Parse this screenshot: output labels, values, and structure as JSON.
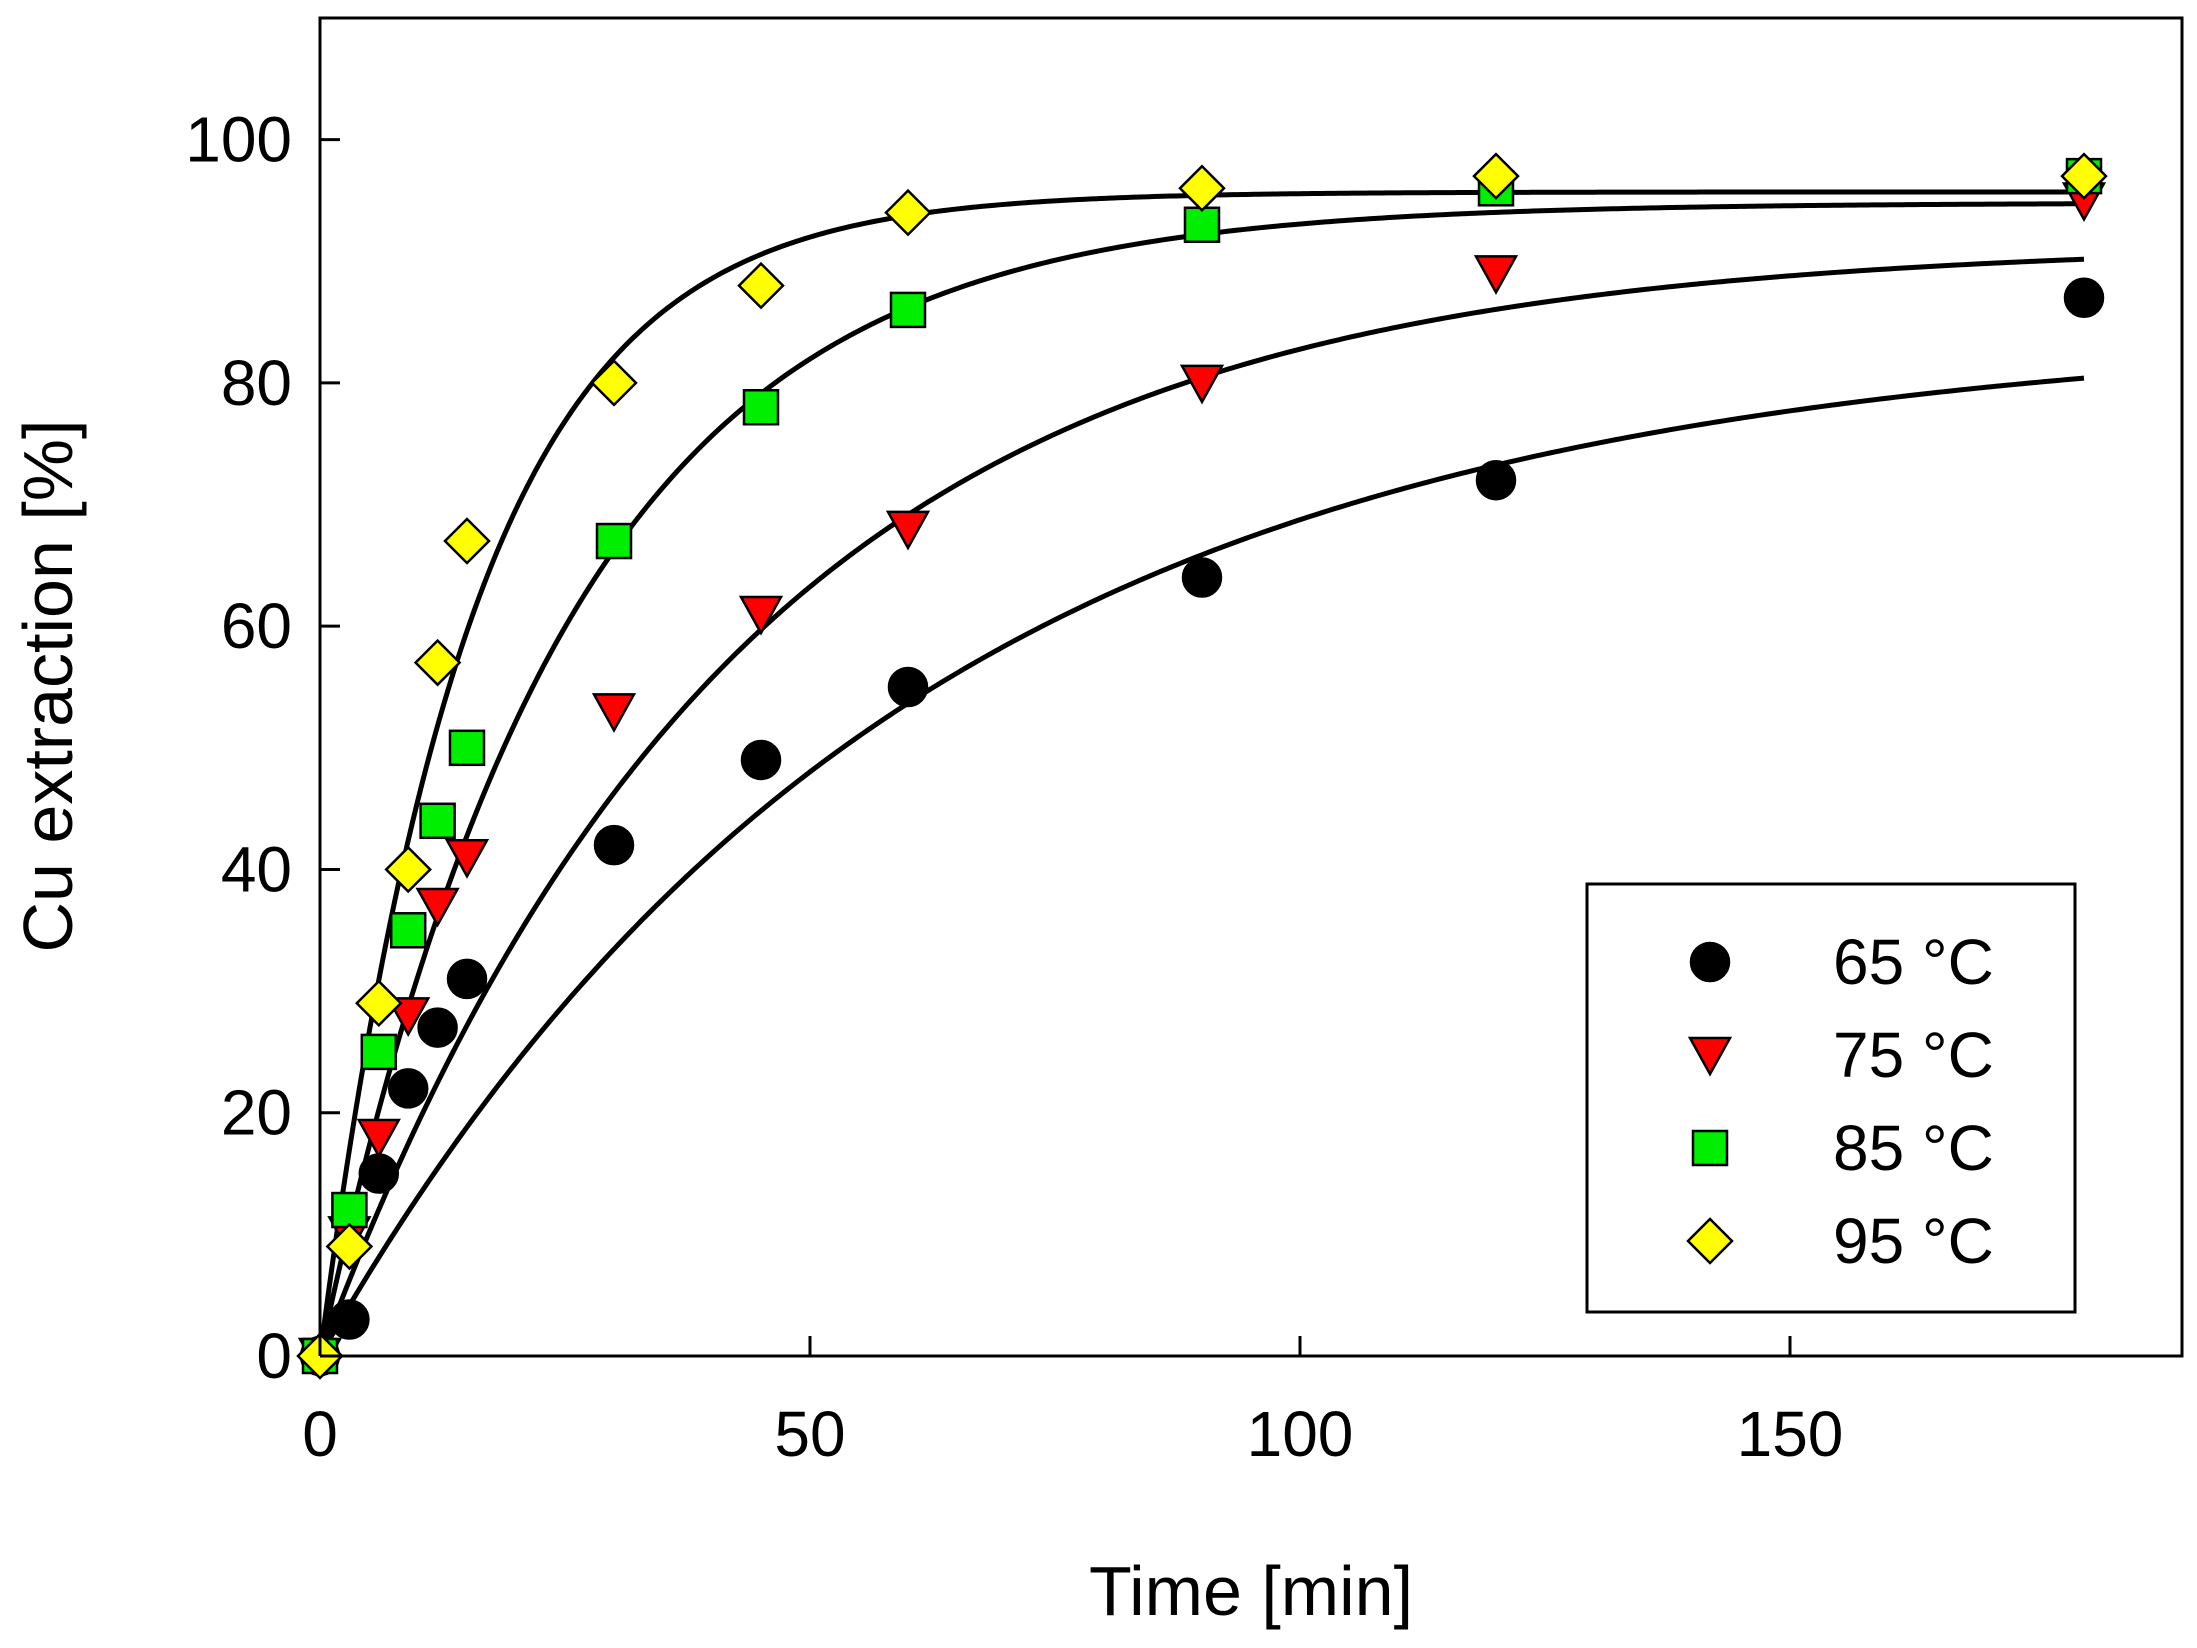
{
  "chart_data": {
    "type": "scatter",
    "title": "",
    "xlabel": "Time [min]",
    "ylabel": "Cu extraction [%]",
    "xlim": [
      0,
      190
    ],
    "ylim": [
      0,
      110
    ],
    "xticks": [
      0,
      50,
      100,
      150
    ],
    "yticks": [
      0,
      20,
      40,
      60,
      80,
      100
    ],
    "grid": false,
    "legend_position": "bottom-right",
    "series": [
      {
        "name": "65 °C",
        "marker": "circle",
        "fill": "#000000",
        "x": [
          0,
          3,
          6,
          9,
          12,
          15,
          30,
          45,
          60,
          90,
          120,
          180
        ],
        "y": [
          0,
          3,
          15,
          22,
          27,
          31,
          42,
          49,
          55,
          64,
          72,
          87
        ],
        "fit": {
          "k": 0.0168,
          "ymax": 84.5,
          "xmax": 180
        }
      },
      {
        "name": "75 °C",
        "marker": "triangle-down",
        "fill": "#ff0000",
        "x": [
          0,
          3,
          6,
          9,
          12,
          15,
          30,
          45,
          60,
          90,
          120,
          180
        ],
        "y": [
          0,
          10,
          18,
          28,
          37,
          41,
          53,
          61,
          68,
          80,
          89,
          95
        ],
        "fit": {
          "k": 0.0235,
          "ymax": 91.5,
          "xmax": 180
        }
      },
      {
        "name": "85 °C",
        "marker": "square",
        "fill": "#00ee00",
        "x": [
          0,
          3,
          6,
          9,
          12,
          15,
          30,
          45,
          60,
          90,
          120,
          180
        ],
        "y": [
          0,
          12,
          25,
          35,
          44,
          50,
          67,
          78,
          86,
          93,
          96,
          97
        ],
        "fit": {
          "k": 0.04,
          "ymax": 94.8,
          "xmax": 180
        }
      },
      {
        "name": "95 °C",
        "marker": "diamond",
        "fill": "#ffff00",
        "x": [
          0,
          3,
          6,
          9,
          12,
          15,
          30,
          45,
          60,
          90,
          120,
          180
        ],
        "y": [
          0,
          9,
          29,
          40,
          57,
          67,
          80,
          88,
          94,
          96,
          97,
          97
        ],
        "fit": {
          "k": 0.065,
          "ymax": 95.7,
          "xmax": 180
        }
      }
    ]
  }
}
